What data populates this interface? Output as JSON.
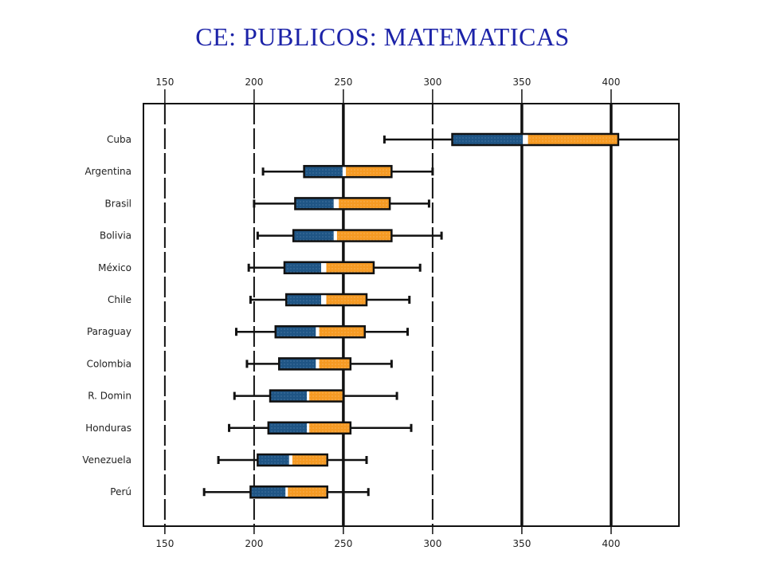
{
  "title": "CE: PUBLICOS: MATEMATICAS",
  "chart_data": {
    "type": "boxplot",
    "title": "CE: PUBLICOS: MATEMATICAS",
    "xlabel": "",
    "ylabel": "",
    "xlim": [
      138,
      438
    ],
    "xticks": [
      150,
      200,
      250,
      300,
      350,
      400
    ],
    "xtick_labels": [
      "150",
      "200",
      "250",
      "300",
      "350",
      "400"
    ],
    "reference_lines": {
      "bold": [
        250,
        350,
        400
      ],
      "dashed": [
        150,
        200,
        300
      ]
    },
    "colors": {
      "lower_box": "#1f5585",
      "upper_box": "#f59a23",
      "mean_marker": "#ffffff",
      "frame": "#111111"
    },
    "categories": [
      "Cuba",
      "Argentina",
      "Brasil",
      "Bolivia",
      "México",
      "Chile",
      "Paraguay",
      "Colombia",
      "R. Domin",
      "Honduras",
      "Venezuela",
      "Perú"
    ],
    "whisker_low": [
      273,
      205,
      200,
      202,
      197,
      198,
      190,
      196,
      189,
      186,
      180,
      172
    ],
    "q1": [
      311,
      228,
      223,
      222,
      217,
      218,
      212,
      214,
      209,
      208,
      202,
      198
    ],
    "median": [
      351,
      250,
      245,
      245,
      238,
      238,
      235,
      235,
      230,
      230,
      220,
      218
    ],
    "mean_marker": [
      353,
      251,
      247,
      246,
      240,
      240,
      236,
      236,
      230,
      230,
      221,
      218
    ],
    "q3": [
      404,
      277,
      276,
      277,
      267,
      263,
      262,
      254,
      250,
      254,
      241,
      241
    ],
    "whisker_high": [
      438,
      300,
      298,
      305,
      293,
      287,
      286,
      277,
      280,
      288,
      263,
      264
    ]
  }
}
